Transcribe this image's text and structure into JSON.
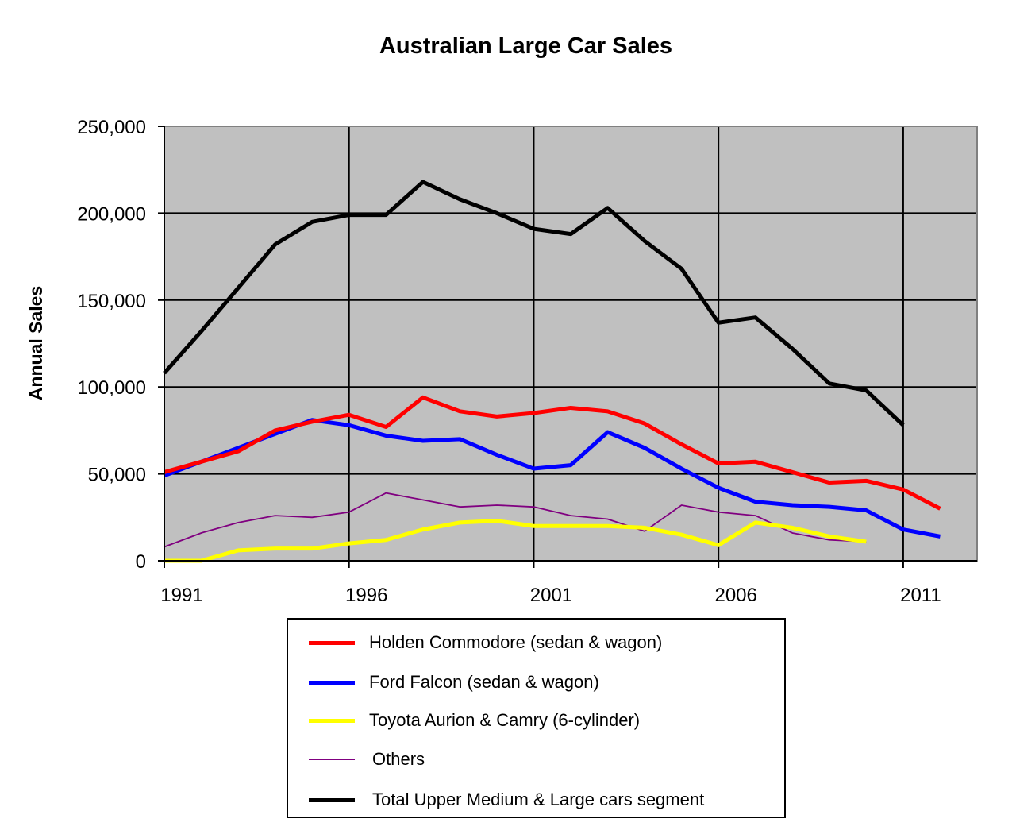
{
  "chart_data": {
    "type": "line",
    "title": "Australian Large Car Sales",
    "xlabel": "",
    "ylabel": "Annual Sales",
    "xlim": [
      1991,
      2013
    ],
    "ylim": [
      0,
      250000
    ],
    "x_ticks": [
      1991,
      1996,
      2001,
      2006,
      2011
    ],
    "x_tick_labels": [
      "1991",
      "1996",
      "2001",
      "2006",
      "2011"
    ],
    "y_ticks": [
      0,
      50000,
      100000,
      150000,
      200000,
      250000
    ],
    "y_tick_labels": [
      "0",
      "50,000",
      "100,000",
      "150,000",
      "200,000",
      "250,000"
    ],
    "grid": true,
    "plot_background": "#c0c0c0",
    "legend_position": "bottom",
    "x": [
      1991,
      1992,
      1993,
      1994,
      1995,
      1996,
      1997,
      1998,
      1999,
      2000,
      2001,
      2002,
      2003,
      2004,
      2005,
      2006,
      2007,
      2008,
      2009,
      2010,
      2011,
      2012
    ],
    "series": [
      {
        "name": "Holden Commodore (sedan & wagon)",
        "color": "#ff0000",
        "width": 5,
        "values": [
          51000,
          57000,
          63000,
          75000,
          80000,
          84000,
          77000,
          94000,
          86000,
          83000,
          85000,
          88000,
          86000,
          79000,
          67000,
          56000,
          57000,
          51000,
          45000,
          46000,
          41000,
          30000
        ]
      },
      {
        "name": "Ford Falcon (sedan & wagon)",
        "color": "#0000ff",
        "width": 5,
        "values": [
          49000,
          57000,
          65000,
          73000,
          81000,
          78000,
          72000,
          69000,
          70000,
          61000,
          53000,
          55000,
          74000,
          65000,
          53000,
          42000,
          34000,
          32000,
          31000,
          29000,
          18000,
          14000
        ]
      },
      {
        "name": "Toyota Aurion & Camry (6-cylinder)",
        "color": "#ffff00",
        "width": 5,
        "values": [
          0,
          0,
          6000,
          7000,
          7000,
          10000,
          12000,
          18000,
          22000,
          23000,
          20000,
          20000,
          20000,
          19000,
          15000,
          9000,
          22000,
          19000,
          14000,
          11000,
          null,
          null
        ]
      },
      {
        "name": "Others",
        "color": "#800080",
        "width": 1.8,
        "values": [
          8000,
          16000,
          22000,
          26000,
          25000,
          28000,
          39000,
          35000,
          31000,
          32000,
          31000,
          26000,
          24000,
          17000,
          32000,
          28000,
          26000,
          16000,
          12000,
          11000,
          null,
          null
        ]
      },
      {
        "name": "Total Upper Medium & Large cars segment",
        "color": "#000000",
        "width": 5,
        "values": [
          108000,
          132000,
          157000,
          182000,
          195000,
          199000,
          199000,
          218000,
          208000,
          200000,
          191000,
          188000,
          203000,
          184000,
          168000,
          137000,
          140000,
          122000,
          102000,
          98000,
          78000,
          null
        ]
      }
    ]
  }
}
